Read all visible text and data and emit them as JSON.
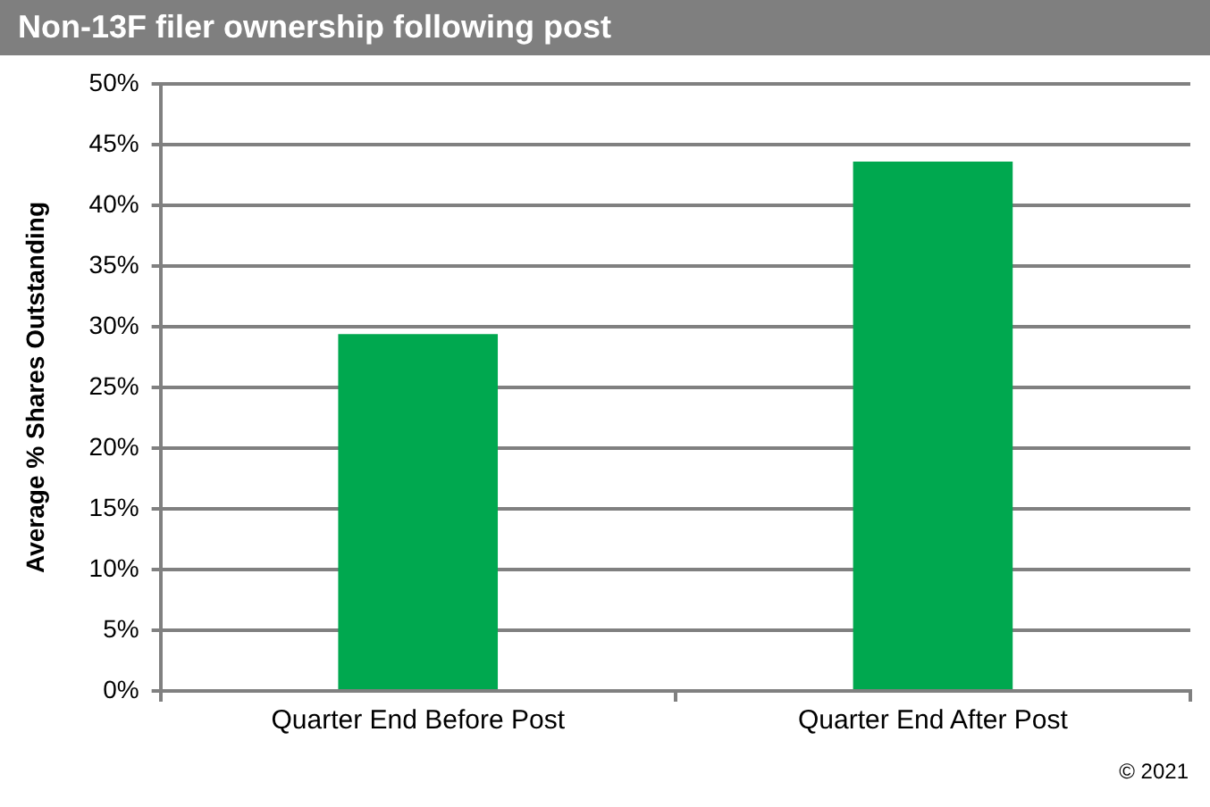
{
  "chart_data": {
    "type": "bar",
    "title": "Non-13F filer ownership following post",
    "ylabel": "Average % Shares Outstanding",
    "categories": [
      "Quarter End Before Post",
      "Quarter End After Post"
    ],
    "values": [
      29.4,
      43.6
    ],
    "color": "#00a84f",
    "ylim": [
      0,
      50
    ],
    "yticks": [
      {
        "value": 0,
        "label": "0%"
      },
      {
        "value": 5,
        "label": "5%"
      },
      {
        "value": 10,
        "label": "10%"
      },
      {
        "value": 15,
        "label": "15%"
      },
      {
        "value": 20,
        "label": "20%"
      },
      {
        "value": 25,
        "label": "25%"
      },
      {
        "value": 30,
        "label": "30%"
      },
      {
        "value": 35,
        "label": "35%"
      },
      {
        "value": 40,
        "label": "40%"
      },
      {
        "value": 45,
        "label": "45%"
      },
      {
        "value": 50,
        "label": "50%"
      }
    ],
    "grid": "y",
    "annotations": [
      "© 2021"
    ]
  }
}
